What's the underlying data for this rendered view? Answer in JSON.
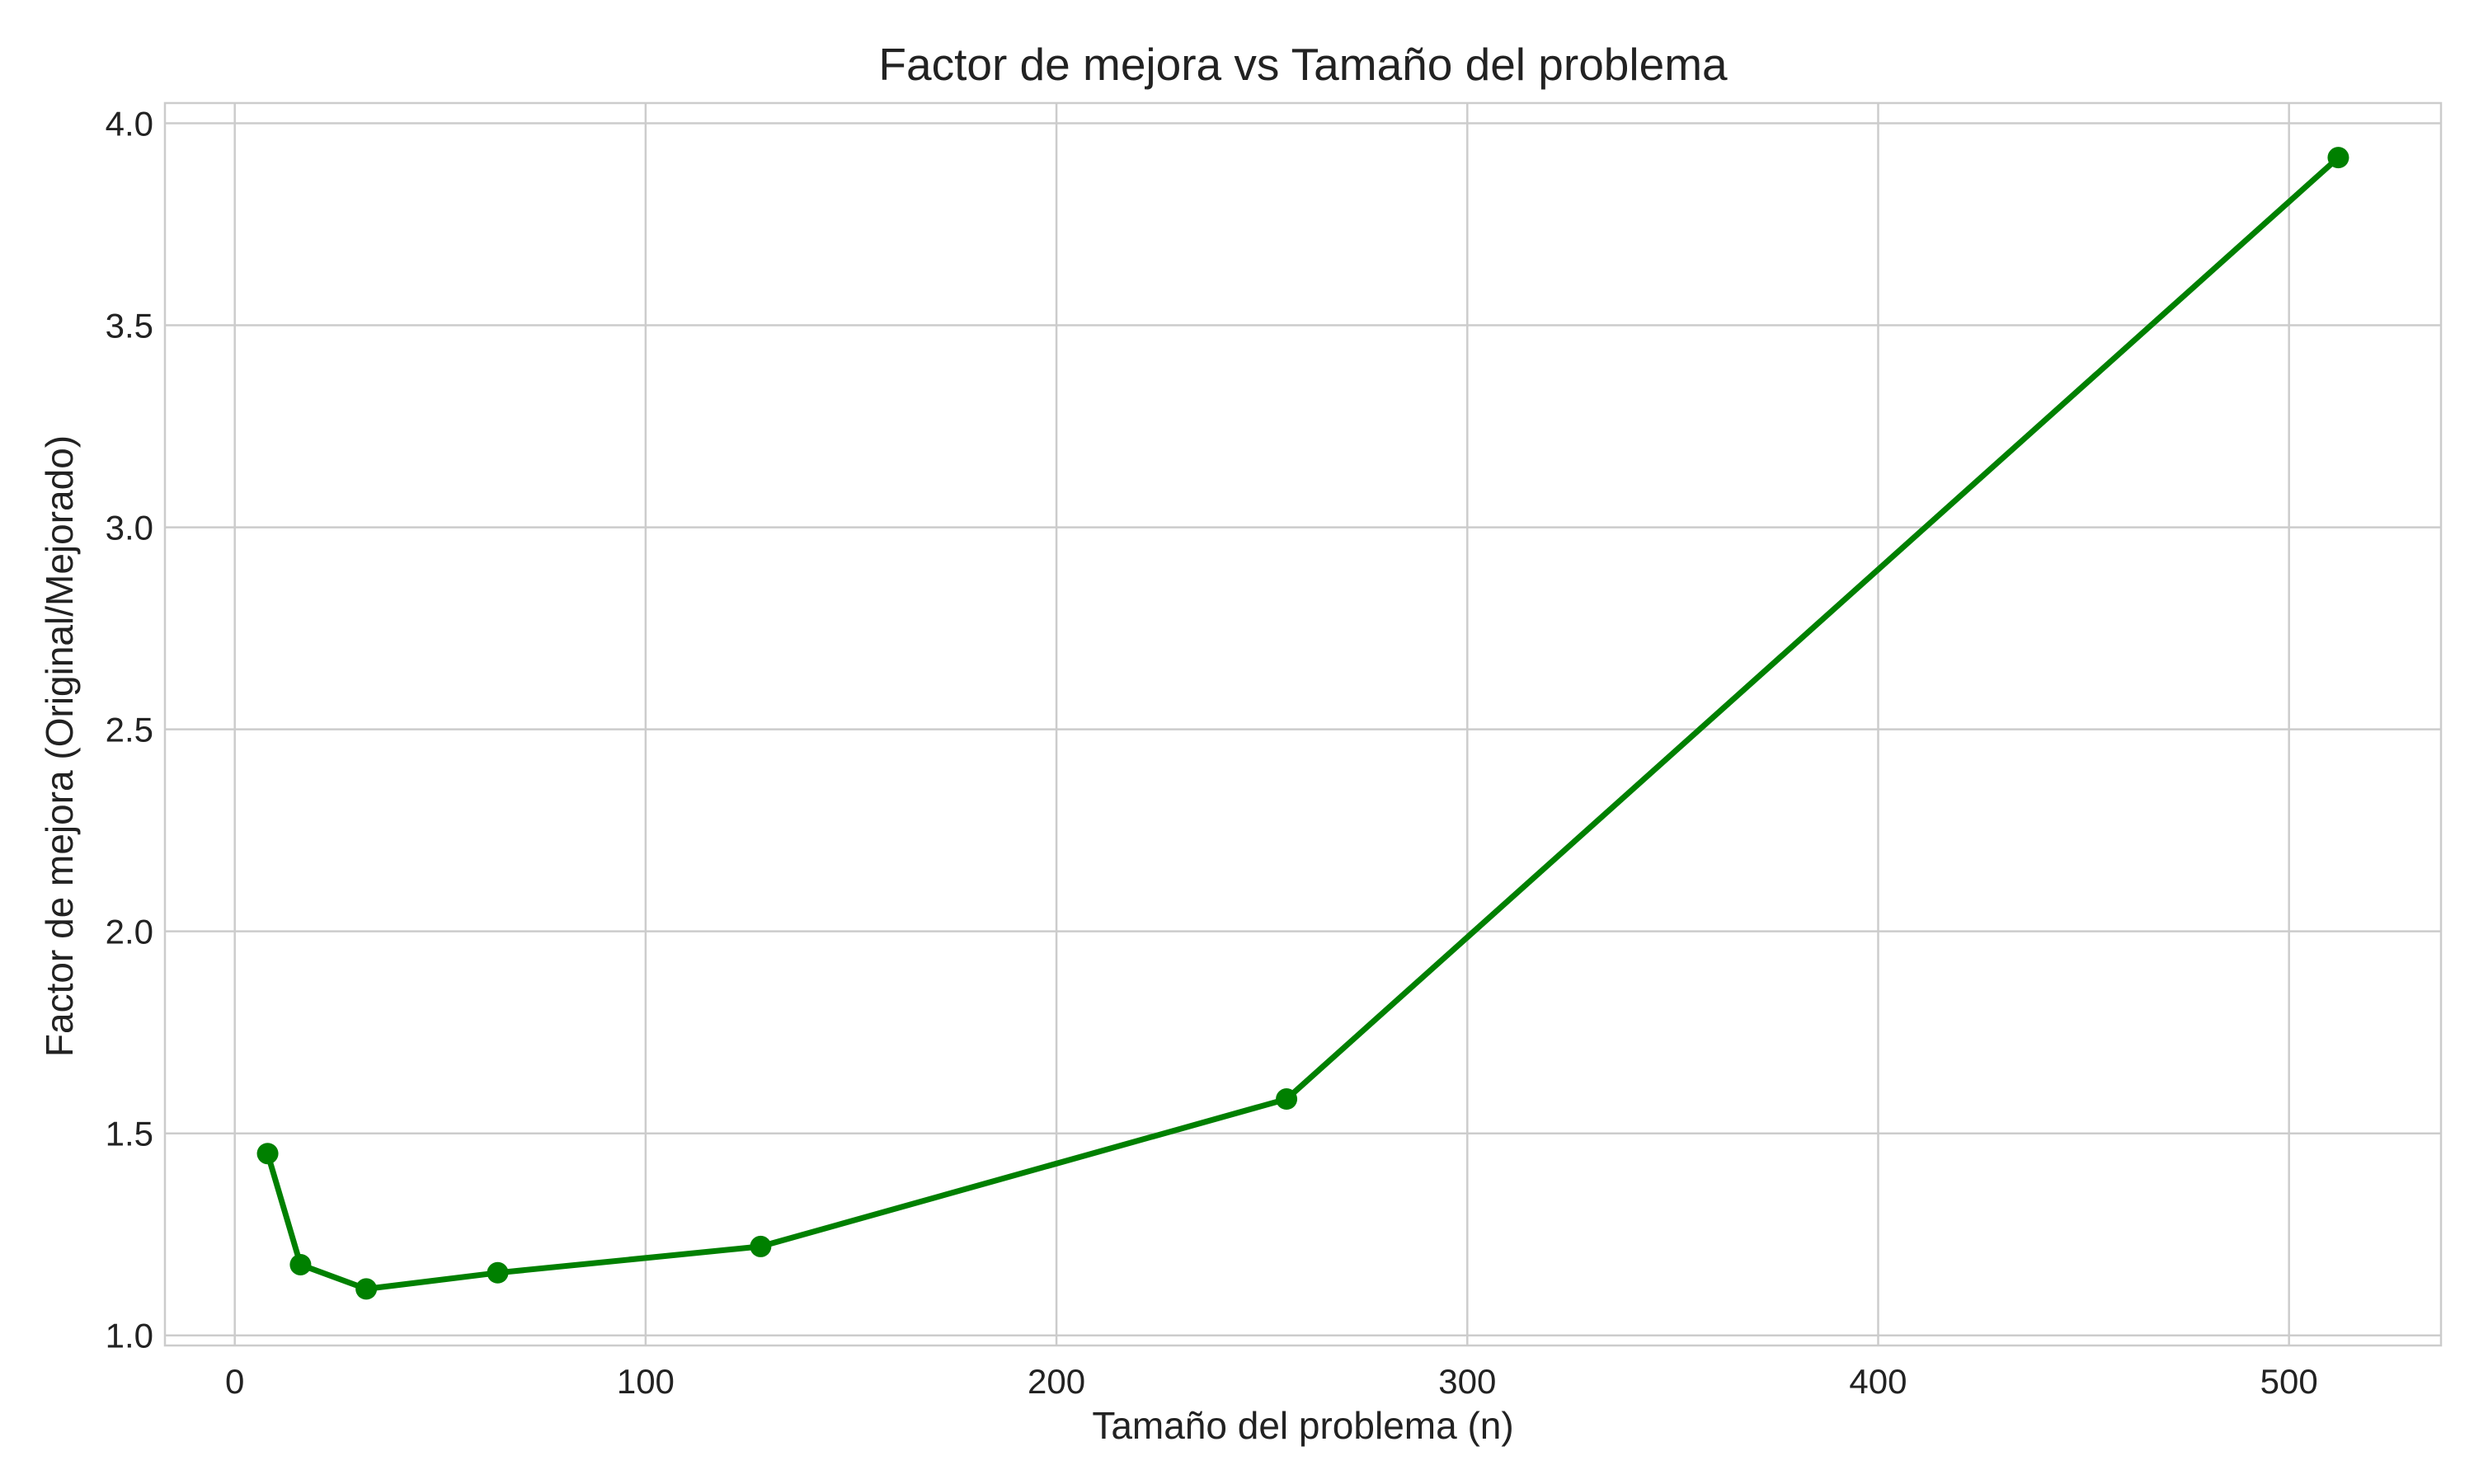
{
  "chart_data": {
    "type": "line",
    "title": "Factor de mejora vs Tamaño del problema",
    "xlabel": "Tamaño del problema (n)",
    "ylabel": "Factor de mejora (Original/Mejorado)",
    "xlim": [
      -17,
      537
    ],
    "ylim": [
      0.975,
      4.05
    ],
    "xticks": [
      0,
      100,
      200,
      300,
      400,
      500
    ],
    "yticks": [
      1.0,
      1.5,
      2.0,
      2.5,
      3.0,
      3.5,
      4.0
    ],
    "xtick_labels": [
      "0",
      "100",
      "200",
      "300",
      "400",
      "500"
    ],
    "ytick_labels": [
      "1.0",
      "1.5",
      "2.0",
      "2.5",
      "3.0",
      "3.5",
      "4.0"
    ],
    "grid": true,
    "series": [
      {
        "color": "#008000",
        "marker": "circle",
        "x": [
          8,
          16,
          32,
          64,
          128,
          256,
          512
        ],
        "y": [
          1.45,
          1.175,
          1.115,
          1.155,
          1.22,
          1.585,
          3.915
        ]
      }
    ]
  }
}
